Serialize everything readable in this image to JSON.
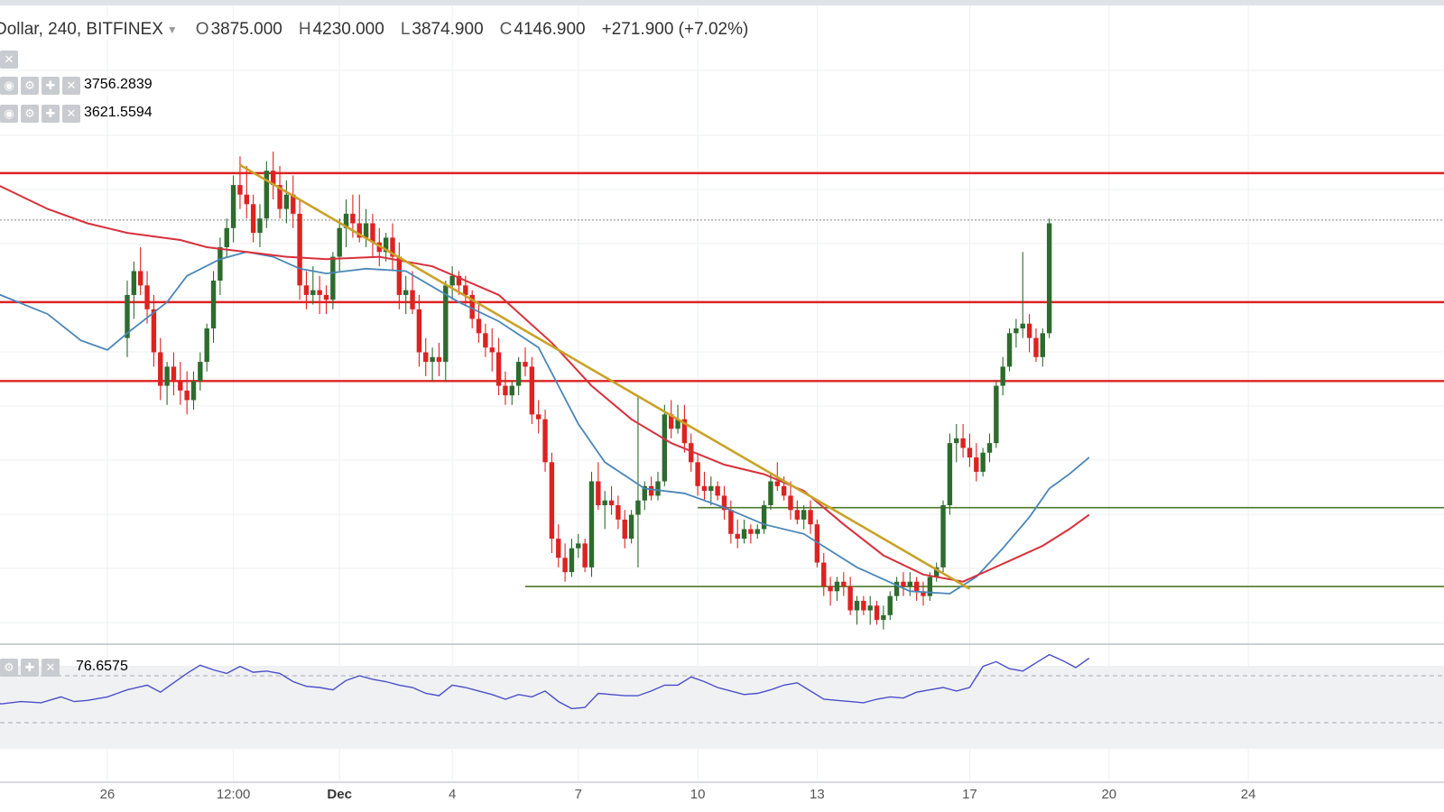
{
  "header": {
    "symbol": "Dollar, 240, BITFINEX",
    "open_label": "O",
    "open": "3875.000",
    "high_label": "H",
    "high": "4230.000",
    "low_label": "L",
    "low": "3874.900",
    "close_label": "C",
    "close": "4146.900",
    "change": "+271.900 (+7.02%)"
  },
  "indicators": {
    "ma_fast_value": "3756.2839",
    "ma_slow_value": "3621.5594",
    "rsi_value": "76.6575",
    "ma_fast_color": "#4a86b8",
    "ma_slow_color": "#d9303b",
    "rsi_color": "#4a4fc9"
  },
  "colors": {
    "up": "#2e6b2e",
    "down": "#dd2222",
    "resistance": "#dd2222",
    "support": "#4d7a2a",
    "trend": "#c9a227"
  },
  "x_ticks": [
    {
      "label": "26",
      "bold": false
    },
    {
      "label": "12:00",
      "bold": false
    },
    {
      "label": "Dec",
      "bold": true
    },
    {
      "label": "4",
      "bold": false
    },
    {
      "label": "7",
      "bold": false
    },
    {
      "label": "10",
      "bold": false
    },
    {
      "label": "13",
      "bold": false
    },
    {
      "label": "17",
      "bold": false
    },
    {
      "label": "20",
      "bold": false
    },
    {
      "label": "24",
      "bold": false
    }
  ],
  "chart_data": {
    "type": "candlestick",
    "x_unit": "4h bar index",
    "x_tick_bars": [
      -3,
      16,
      32,
      49,
      68,
      86,
      104,
      127,
      148,
      169
    ],
    "ylim": [
      3280,
      4460
    ],
    "candles": [
      [
        3900,
        4020,
        3860,
        3990
      ],
      [
        3990,
        4060,
        3940,
        4040
      ],
      [
        4040,
        4090,
        3990,
        4010
      ],
      [
        4010,
        4040,
        3930,
        3960
      ],
      [
        3960,
        3990,
        3840,
        3870
      ],
      [
        3870,
        3900,
        3770,
        3800
      ],
      [
        3800,
        3850,
        3760,
        3840
      ],
      [
        3840,
        3870,
        3780,
        3810
      ],
      [
        3810,
        3850,
        3760,
        3790
      ],
      [
        3790,
        3830,
        3740,
        3770
      ],
      [
        3770,
        3830,
        3750,
        3810
      ],
      [
        3810,
        3870,
        3790,
        3850
      ],
      [
        3850,
        3930,
        3830,
        3920
      ],
      [
        3920,
        4040,
        3890,
        4020
      ],
      [
        4020,
        4110,
        3990,
        4090
      ],
      [
        4090,
        4150,
        4070,
        4130
      ],
      [
        4130,
        4240,
        4100,
        4220
      ],
      [
        4220,
        4280,
        4170,
        4200
      ],
      [
        4200,
        4260,
        4150,
        4180
      ],
      [
        4180,
        4200,
        4100,
        4120
      ],
      [
        4120,
        4180,
        4090,
        4150
      ],
      [
        4150,
        4270,
        4130,
        4250
      ],
      [
        4250,
        4290,
        4190,
        4220
      ],
      [
        4220,
        4260,
        4150,
        4170
      ],
      [
        4170,
        4230,
        4140,
        4200
      ],
      [
        4200,
        4240,
        4130,
        4160
      ],
      [
        4160,
        4190,
        3980,
        4010
      ],
      [
        4010,
        4040,
        3960,
        3990
      ],
      [
        3990,
        4050,
        3970,
        4000
      ],
      [
        4000,
        4030,
        3950,
        3990
      ],
      [
        3990,
        4010,
        3950,
        3980
      ],
      [
        3980,
        4080,
        3960,
        4070
      ],
      [
        4070,
        4150,
        4040,
        4130
      ],
      [
        4130,
        4190,
        4090,
        4160
      ],
      [
        4160,
        4200,
        4110,
        4140
      ],
      [
        4140,
        4200,
        4100,
        4110
      ],
      [
        4110,
        4170,
        4090,
        4140
      ],
      [
        4140,
        4160,
        4070,
        4100
      ],
      [
        4100,
        4130,
        4050,
        4080
      ],
      [
        4080,
        4120,
        4060,
        4110
      ],
      [
        4110,
        4140,
        4040,
        4070
      ],
      [
        4070,
        4100,
        3960,
        3990
      ],
      [
        3990,
        4030,
        3950,
        4000
      ],
      [
        4000,
        4040,
        3950,
        3960
      ],
      [
        3960,
        3990,
        3840,
        3870
      ],
      [
        3870,
        3900,
        3820,
        3850
      ],
      [
        3850,
        3880,
        3810,
        3860
      ],
      [
        3860,
        3890,
        3820,
        3850
      ],
      [
        3850,
        4020,
        3810,
        4010
      ],
      [
        4010,
        4050,
        3980,
        4030
      ],
      [
        4030,
        4040,
        3990,
        4010
      ],
      [
        4010,
        4030,
        3970,
        3990
      ],
      [
        3990,
        4000,
        3920,
        3940
      ],
      [
        3940,
        3970,
        3890,
        3910
      ],
      [
        3910,
        3930,
        3860,
        3880
      ],
      [
        3880,
        3920,
        3830,
        3870
      ],
      [
        3870,
        3900,
        3780,
        3800
      ],
      [
        3800,
        3830,
        3760,
        3780
      ],
      [
        3780,
        3810,
        3760,
        3800
      ],
      [
        3800,
        3860,
        3780,
        3850
      ],
      [
        3850,
        3880,
        3820,
        3840
      ],
      [
        3840,
        3860,
        3720,
        3740
      ],
      [
        3740,
        3770,
        3700,
        3730
      ],
      [
        3730,
        3750,
        3620,
        3640
      ],
      [
        3640,
        3660,
        3450,
        3480
      ],
      [
        3480,
        3510,
        3420,
        3440
      ],
      [
        3440,
        3470,
        3390,
        3410
      ],
      [
        3410,
        3480,
        3400,
        3460
      ],
      [
        3460,
        3490,
        3440,
        3470
      ],
      [
        3470,
        3480,
        3410,
        3420
      ],
      [
        3420,
        3620,
        3400,
        3600
      ],
      [
        3600,
        3640,
        3540,
        3550
      ],
      [
        3550,
        3580,
        3500,
        3560
      ],
      [
        3560,
        3590,
        3530,
        3550
      ],
      [
        3550,
        3570,
        3500,
        3520
      ],
      [
        3520,
        3540,
        3460,
        3480
      ],
      [
        3480,
        3540,
        3470,
        3530
      ],
      [
        3530,
        3780,
        3420,
        3560
      ],
      [
        3560,
        3600,
        3540,
        3590
      ],
      [
        3590,
        3610,
        3560,
        3570
      ],
      [
        3570,
        3620,
        3560,
        3600
      ],
      [
        3600,
        3760,
        3590,
        3740
      ],
      [
        3740,
        3770,
        3690,
        3710
      ],
      [
        3710,
        3760,
        3700,
        3730
      ],
      [
        3730,
        3760,
        3660,
        3680
      ],
      [
        3680,
        3700,
        3620,
        3640
      ],
      [
        3640,
        3660,
        3570,
        3590
      ],
      [
        3590,
        3620,
        3560,
        3580
      ],
      [
        3580,
        3610,
        3550,
        3590
      ],
      [
        3590,
        3600,
        3560,
        3570
      ],
      [
        3570,
        3590,
        3520,
        3540
      ],
      [
        3540,
        3560,
        3470,
        3490
      ],
      [
        3490,
        3520,
        3460,
        3480
      ],
      [
        3480,
        3520,
        3470,
        3500
      ],
      [
        3500,
        3510,
        3470,
        3490
      ],
      [
        3490,
        3510,
        3480,
        3500
      ],
      [
        3500,
        3560,
        3490,
        3550
      ],
      [
        3550,
        3620,
        3540,
        3600
      ],
      [
        3600,
        3640,
        3580,
        3590
      ],
      [
        3590,
        3610,
        3560,
        3570
      ],
      [
        3570,
        3600,
        3520,
        3540
      ],
      [
        3540,
        3560,
        3510,
        3520
      ],
      [
        3520,
        3550,
        3500,
        3540
      ],
      [
        3540,
        3560,
        3490,
        3510
      ],
      [
        3510,
        3520,
        3420,
        3430
      ],
      [
        3430,
        3450,
        3360,
        3380
      ],
      [
        3380,
        3400,
        3340,
        3370
      ],
      [
        3370,
        3400,
        3350,
        3390
      ],
      [
        3390,
        3410,
        3360,
        3380
      ],
      [
        3380,
        3400,
        3320,
        3330
      ],
      [
        3330,
        3360,
        3300,
        3350
      ],
      [
        3350,
        3360,
        3320,
        3330
      ],
      [
        3330,
        3360,
        3300,
        3340
      ],
      [
        3340,
        3350,
        3300,
        3310
      ],
      [
        3310,
        3340,
        3290,
        3320
      ],
      [
        3320,
        3370,
        3310,
        3360
      ],
      [
        3360,
        3400,
        3350,
        3390
      ],
      [
        3390,
        3410,
        3360,
        3380
      ],
      [
        3380,
        3410,
        3360,
        3390
      ],
      [
        3390,
        3400,
        3350,
        3370
      ],
      [
        3370,
        3390,
        3340,
        3360
      ],
      [
        3360,
        3410,
        3350,
        3400
      ],
      [
        3400,
        3430,
        3390,
        3420
      ],
      [
        3420,
        3560,
        3410,
        3550
      ],
      [
        3550,
        3700,
        3530,
        3680
      ],
      [
        3680,
        3720,
        3640,
        3690
      ],
      [
        3690,
        3720,
        3650,
        3670
      ],
      [
        3670,
        3700,
        3630,
        3650
      ],
      [
        3650,
        3680,
        3600,
        3620
      ],
      [
        3620,
        3670,
        3610,
        3660
      ],
      [
        3660,
        3700,
        3640,
        3680
      ],
      [
        3680,
        3810,
        3670,
        3800
      ],
      [
        3800,
        3860,
        3780,
        3840
      ],
      [
        3840,
        3920,
        3830,
        3910
      ],
      [
        3910,
        3940,
        3880,
        3920
      ],
      [
        3920,
        4080,
        3900,
        3930
      ],
      [
        3930,
        3950,
        3870,
        3900
      ],
      [
        3900,
        3920,
        3850,
        3860
      ],
      [
        3860,
        3920,
        3840,
        3910
      ],
      [
        3910,
        4150,
        3900,
        4140
      ]
    ],
    "ma_fast": [
      [
        -29,
        4040
      ],
      [
        -20,
        3995
      ],
      [
        -12,
        3950
      ],
      [
        -7,
        3895
      ],
      [
        -3,
        3875
      ],
      [
        0,
        3910
      ],
      [
        6,
        3975
      ],
      [
        9,
        4030
      ],
      [
        14,
        4065
      ],
      [
        18,
        4080
      ],
      [
        22,
        4070
      ],
      [
        26,
        4045
      ],
      [
        30,
        4035
      ],
      [
        36,
        4045
      ],
      [
        42,
        4040
      ],
      [
        50,
        3975
      ],
      [
        56,
        3935
      ],
      [
        62,
        3880
      ],
      [
        68,
        3720
      ],
      [
        72,
        3640
      ],
      [
        78,
        3585
      ],
      [
        84,
        3575
      ],
      [
        90,
        3545
      ],
      [
        96,
        3510
      ],
      [
        102,
        3490
      ],
      [
        110,
        3420
      ],
      [
        118,
        3370
      ],
      [
        124,
        3365
      ],
      [
        128,
        3400
      ],
      [
        132,
        3460
      ],
      [
        136,
        3525
      ],
      [
        139,
        3585
      ],
      [
        142,
        3615
      ],
      [
        145,
        3650
      ]
    ],
    "ma_slow": [
      [
        -29,
        4290
      ],
      [
        -24,
        4250
      ],
      [
        -18,
        4210
      ],
      [
        -12,
        4170
      ],
      [
        -6,
        4140
      ],
      [
        0,
        4120
      ],
      [
        8,
        4105
      ],
      [
        12,
        4090
      ],
      [
        18,
        4080
      ],
      [
        24,
        4070
      ],
      [
        30,
        4065
      ],
      [
        38,
        4070
      ],
      [
        46,
        4050
      ],
      [
        56,
        3990
      ],
      [
        64,
        3890
      ],
      [
        70,
        3800
      ],
      [
        76,
        3730
      ],
      [
        82,
        3680
      ],
      [
        90,
        3635
      ],
      [
        96,
        3615
      ],
      [
        102,
        3580
      ],
      [
        108,
        3510
      ],
      [
        114,
        3445
      ],
      [
        120,
        3405
      ],
      [
        126,
        3390
      ],
      [
        130,
        3415
      ],
      [
        134,
        3440
      ],
      [
        138,
        3465
      ],
      [
        142,
        3500
      ],
      [
        145,
        3530
      ]
    ],
    "rsi_points": [
      [
        -29,
        52
      ],
      [
        -25,
        48
      ],
      [
        -22,
        50
      ],
      [
        -19,
        46
      ],
      [
        -16,
        48
      ],
      [
        -13,
        47
      ],
      [
        -10,
        52
      ],
      [
        -8,
        48
      ],
      [
        -6,
        49
      ],
      [
        -3,
        52
      ],
      [
        0,
        58
      ],
      [
        3,
        62
      ],
      [
        5,
        56
      ],
      [
        7,
        64
      ],
      [
        9,
        72
      ],
      [
        11,
        79
      ],
      [
        13,
        75
      ],
      [
        15,
        72
      ],
      [
        17,
        78
      ],
      [
        19,
        73
      ],
      [
        21,
        74
      ],
      [
        23,
        72
      ],
      [
        25,
        65
      ],
      [
        27,
        61
      ],
      [
        29,
        60
      ],
      [
        31,
        58
      ],
      [
        33,
        66
      ],
      [
        35,
        70
      ],
      [
        37,
        67
      ],
      [
        39,
        65
      ],
      [
        41,
        62
      ],
      [
        43,
        60
      ],
      [
        45,
        55
      ],
      [
        47,
        53
      ],
      [
        49,
        62
      ],
      [
        51,
        60
      ],
      [
        53,
        57
      ],
      [
        55,
        54
      ],
      [
        57,
        50
      ],
      [
        59,
        54
      ],
      [
        61,
        52
      ],
      [
        63,
        57
      ],
      [
        65,
        48
      ],
      [
        67,
        42
      ],
      [
        69,
        43
      ],
      [
        71,
        55
      ],
      [
        73,
        54
      ],
      [
        75,
        53
      ],
      [
        77,
        53
      ],
      [
        79,
        57
      ],
      [
        81,
        62
      ],
      [
        83,
        62
      ],
      [
        85,
        69
      ],
      [
        87,
        65
      ],
      [
        89,
        60
      ],
      [
        91,
        57
      ],
      [
        93,
        54
      ],
      [
        95,
        55
      ],
      [
        97,
        58
      ],
      [
        99,
        62
      ],
      [
        101,
        64
      ],
      [
        103,
        57
      ],
      [
        105,
        50
      ],
      [
        107,
        49
      ],
      [
        109,
        48
      ],
      [
        111,
        47
      ],
      [
        113,
        50
      ],
      [
        115,
        52
      ],
      [
        117,
        51
      ],
      [
        119,
        56
      ],
      [
        121,
        58
      ],
      [
        123,
        60
      ],
      [
        125,
        57
      ],
      [
        127,
        60
      ],
      [
        129,
        78
      ],
      [
        131,
        82
      ],
      [
        133,
        76
      ],
      [
        135,
        74
      ],
      [
        137,
        81
      ],
      [
        139,
        88
      ],
      [
        141,
        83
      ],
      [
        143,
        77
      ],
      [
        145,
        85
      ]
    ],
    "horizontal_levels": [
      {
        "kind": "resistance",
        "price": 4245,
        "from_bar": -30,
        "to_bar": 214
      },
      {
        "kind": "resistance",
        "price": 3975,
        "from_bar": -30,
        "to_bar": 214
      },
      {
        "kind": "resistance",
        "price": 3810,
        "from_bar": -30,
        "to_bar": 214
      },
      {
        "kind": "support",
        "price": 3545,
        "from_bar": 86,
        "to_bar": 214
      },
      {
        "kind": "support",
        "price": 3380,
        "from_bar": 60,
        "to_bar": 214
      },
      {
        "kind": "current-price",
        "price": 4146.9,
        "from_bar": -30,
        "to_bar": 214
      }
    ],
    "trendline": [
      [
        17,
        4262
      ],
      [
        127,
        3375
      ]
    ],
    "rsi_levels": [
      70,
      30
    ]
  }
}
